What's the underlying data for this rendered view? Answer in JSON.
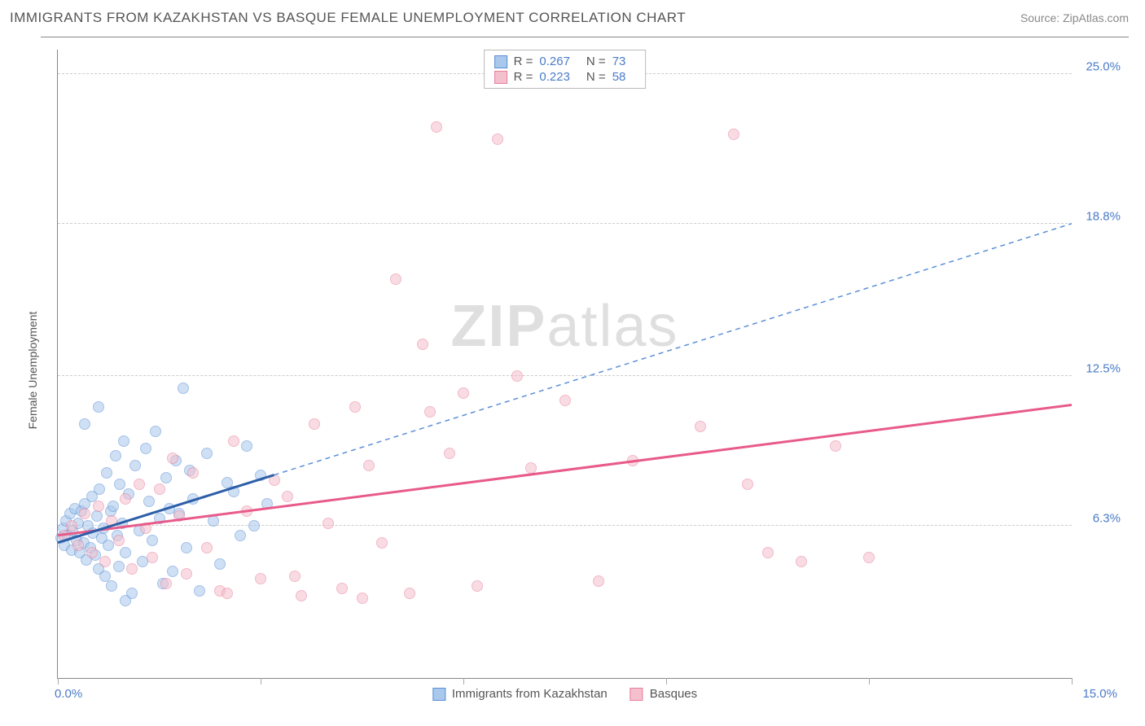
{
  "title": "IMMIGRANTS FROM KAZAKHSTAN VS BASQUE FEMALE UNEMPLOYMENT CORRELATION CHART",
  "source": "Source: ZipAtlas.com",
  "watermark_bold": "ZIP",
  "watermark_rest": "atlas",
  "ylabel": "Female Unemployment",
  "chart": {
    "type": "scatter-correlation",
    "xlim": [
      0,
      15
    ],
    "ylim": [
      0,
      26
    ],
    "x_ticks": [
      0,
      3,
      6,
      9,
      12,
      15
    ],
    "x_tick_labels_shown": {
      "0": "0.0%",
      "15": "15.0%"
    },
    "y_gridlines": [
      6.3,
      12.5,
      18.8,
      25.0
    ],
    "y_labels": [
      "6.3%",
      "12.5%",
      "18.8%",
      "25.0%"
    ],
    "background_color": "#ffffff",
    "grid_color": "#cccccc",
    "axis_color": "#888888",
    "marker_radius": 7,
    "marker_opacity": 0.55,
    "series": [
      {
        "name": "Immigrants from Kazakhstan",
        "fill": "#a8c8ec",
        "stroke": "#5b8fd6",
        "line_color": "#2d5fa8",
        "R": "0.267",
        "N": "73",
        "trend": {
          "x1": 0,
          "y1": 5.6,
          "x2": 3.2,
          "y2": 8.4,
          "dash_to_x": 15,
          "dash_to_y": 18.8
        },
        "points": [
          [
            0.05,
            5.8
          ],
          [
            0.08,
            6.2
          ],
          [
            0.1,
            5.5
          ],
          [
            0.12,
            6.5
          ],
          [
            0.15,
            5.9
          ],
          [
            0.18,
            6.8
          ],
          [
            0.2,
            5.3
          ],
          [
            0.22,
            6.1
          ],
          [
            0.25,
            7.0
          ],
          [
            0.28,
            5.7
          ],
          [
            0.3,
            6.4
          ],
          [
            0.32,
            5.2
          ],
          [
            0.35,
            6.9
          ],
          [
            0.38,
            5.6
          ],
          [
            0.4,
            7.2
          ],
          [
            0.42,
            4.9
          ],
          [
            0.45,
            6.3
          ],
          [
            0.48,
            5.4
          ],
          [
            0.5,
            7.5
          ],
          [
            0.52,
            6.0
          ],
          [
            0.55,
            5.1
          ],
          [
            0.58,
            6.7
          ],
          [
            0.6,
            4.5
          ],
          [
            0.62,
            7.8
          ],
          [
            0.65,
            5.8
          ],
          [
            0.68,
            6.2
          ],
          [
            0.7,
            4.2
          ],
          [
            0.72,
            8.5
          ],
          [
            0.75,
            5.5
          ],
          [
            0.78,
            6.9
          ],
          [
            0.8,
            3.8
          ],
          [
            0.82,
            7.1
          ],
          [
            0.85,
            9.2
          ],
          [
            0.88,
            5.9
          ],
          [
            0.9,
            4.6
          ],
          [
            0.92,
            8.0
          ],
          [
            0.95,
            6.4
          ],
          [
            0.98,
            9.8
          ],
          [
            1.0,
            5.2
          ],
          [
            1.05,
            7.6
          ],
          [
            1.1,
            3.5
          ],
          [
            1.15,
            8.8
          ],
          [
            1.2,
            6.1
          ],
          [
            1.25,
            4.8
          ],
          [
            1.3,
            9.5
          ],
          [
            1.35,
            7.3
          ],
          [
            1.4,
            5.7
          ],
          [
            1.45,
            10.2
          ],
          [
            1.5,
            6.6
          ],
          [
            1.55,
            3.9
          ],
          [
            1.6,
            8.3
          ],
          [
            1.65,
            7.0
          ],
          [
            1.7,
            4.4
          ],
          [
            1.75,
            9.0
          ],
          [
            1.8,
            6.8
          ],
          [
            1.85,
            12.0
          ],
          [
            1.9,
            5.4
          ],
          [
            1.95,
            8.6
          ],
          [
            2.0,
            7.4
          ],
          [
            2.1,
            3.6
          ],
          [
            2.2,
            9.3
          ],
          [
            2.3,
            6.5
          ],
          [
            2.4,
            4.7
          ],
          [
            2.5,
            8.1
          ],
          [
            2.6,
            7.7
          ],
          [
            2.7,
            5.9
          ],
          [
            2.8,
            9.6
          ],
          [
            2.9,
            6.3
          ],
          [
            3.0,
            8.4
          ],
          [
            3.1,
            7.2
          ],
          [
            0.4,
            10.5
          ],
          [
            0.6,
            11.2
          ],
          [
            1.0,
            3.2
          ]
        ]
      },
      {
        "name": "Basques",
        "fill": "#f5c0cd",
        "stroke": "#e87e9c",
        "line_color": "#e85a8a",
        "R": "0.223",
        "N": "58",
        "trend": {
          "x1": 0,
          "y1": 5.9,
          "x2": 15,
          "y2": 11.3
        },
        "points": [
          [
            0.1,
            5.9
          ],
          [
            0.2,
            6.3
          ],
          [
            0.3,
            5.5
          ],
          [
            0.4,
            6.8
          ],
          [
            0.5,
            5.2
          ],
          [
            0.6,
            7.1
          ],
          [
            0.7,
            4.8
          ],
          [
            0.8,
            6.5
          ],
          [
            0.9,
            5.7
          ],
          [
            1.0,
            7.4
          ],
          [
            1.1,
            4.5
          ],
          [
            1.2,
            8.0
          ],
          [
            1.3,
            6.2
          ],
          [
            1.4,
            5.0
          ],
          [
            1.5,
            7.8
          ],
          [
            1.6,
            3.9
          ],
          [
            1.7,
            9.1
          ],
          [
            1.8,
            6.7
          ],
          [
            1.9,
            4.3
          ],
          [
            2.0,
            8.5
          ],
          [
            2.2,
            5.4
          ],
          [
            2.4,
            3.6
          ],
          [
            2.6,
            9.8
          ],
          [
            2.8,
            6.9
          ],
          [
            3.0,
            4.1
          ],
          [
            3.2,
            8.2
          ],
          [
            3.4,
            7.5
          ],
          [
            3.6,
            3.4
          ],
          [
            3.8,
            10.5
          ],
          [
            4.0,
            6.4
          ],
          [
            4.2,
            3.7
          ],
          [
            4.4,
            11.2
          ],
          [
            4.6,
            8.8
          ],
          [
            4.8,
            5.6
          ],
          [
            5.0,
            16.5
          ],
          [
            5.2,
            3.5
          ],
          [
            5.4,
            13.8
          ],
          [
            5.6,
            22.8
          ],
          [
            5.8,
            9.3
          ],
          [
            6.0,
            11.8
          ],
          [
            6.2,
            3.8
          ],
          [
            6.5,
            22.3
          ],
          [
            6.8,
            12.5
          ],
          [
            7.0,
            8.7
          ],
          [
            7.5,
            11.5
          ],
          [
            8.0,
            4.0
          ],
          [
            8.5,
            9.0
          ],
          [
            9.5,
            10.4
          ],
          [
            10.0,
            22.5
          ],
          [
            10.2,
            8.0
          ],
          [
            10.5,
            5.2
          ],
          [
            11.0,
            4.8
          ],
          [
            11.5,
            9.6
          ],
          [
            12.0,
            5.0
          ],
          [
            4.5,
            3.3
          ],
          [
            5.5,
            11.0
          ],
          [
            3.5,
            4.2
          ],
          [
            2.5,
            3.5
          ]
        ]
      }
    ]
  }
}
